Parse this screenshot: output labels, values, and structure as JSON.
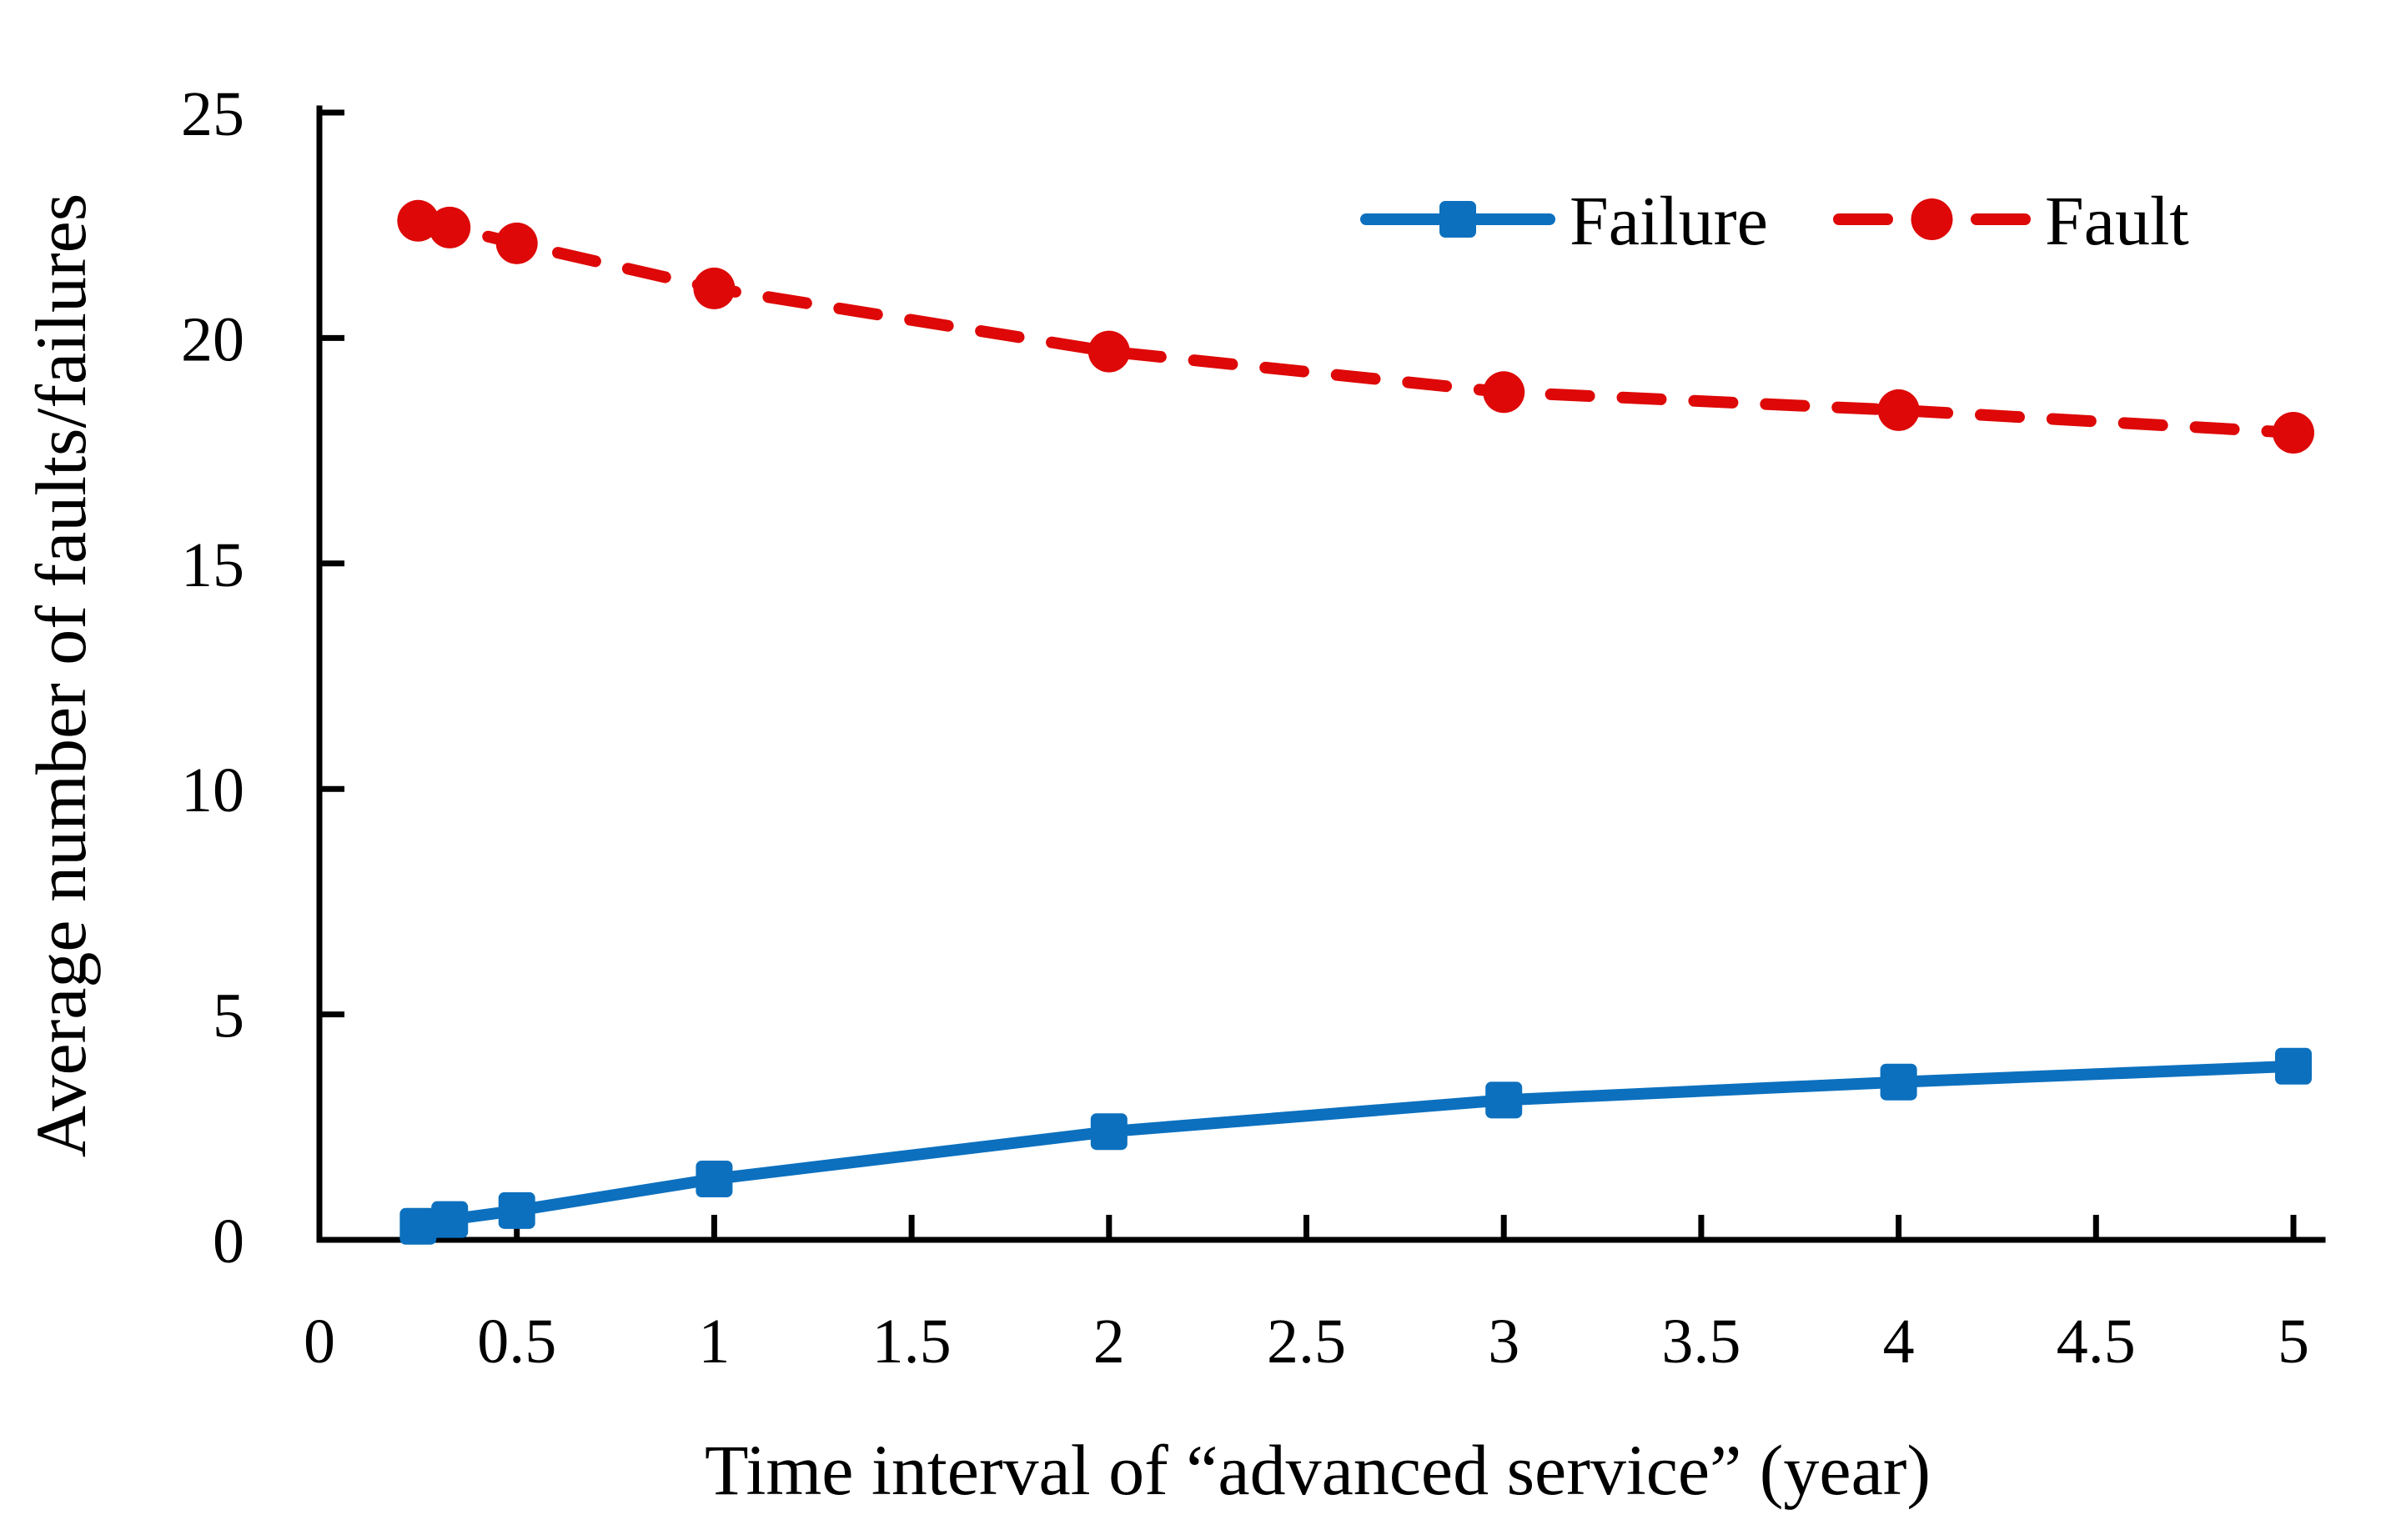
{
  "chart_data": {
    "type": "line",
    "title": "",
    "xlabel": "Time interval of “advanced service” (year)",
    "ylabel": "Average number of faults/failures",
    "x": [
      0.25,
      0.33,
      0.5,
      1,
      2,
      3,
      4,
      5
    ],
    "series": [
      {
        "name": "Failure",
        "color": "#0C70BE",
        "marker": "square",
        "line_style": "solid",
        "values": [
          0.3,
          0.45,
          0.65,
          1.35,
          2.4,
          3.1,
          3.5,
          3.85
        ]
      },
      {
        "name": "Fault",
        "color": "#DD0807",
        "marker": "circle",
        "line_style": "dashed",
        "values": [
          22.6,
          22.45,
          22.1,
          21.1,
          19.7,
          18.8,
          18.4,
          17.9
        ]
      }
    ],
    "xlim": [
      0,
      5
    ],
    "ylim": [
      0,
      25
    ],
    "xticks": [
      0,
      0.5,
      1,
      1.5,
      2,
      2.5,
      3,
      3.5,
      4,
      4.5,
      5
    ],
    "xtick_labels": [
      "0",
      "0.5",
      "1",
      "1.5",
      "2",
      "2.5",
      "3",
      "3.5",
      "4",
      "4.5",
      "5"
    ],
    "yticks": [
      0,
      5,
      10,
      15,
      20,
      25
    ],
    "ytick_labels": [
      "0",
      "5",
      "10",
      "15",
      "20",
      "25"
    ],
    "grid": false,
    "legend_position": "top-right",
    "legend": [
      "Failure",
      "Fault"
    ],
    "axis_color": "#000000",
    "background_color": "#FFFFFF"
  }
}
